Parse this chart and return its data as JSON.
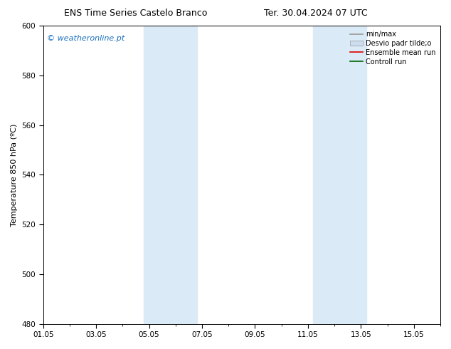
{
  "title_left": "ENS Time Series Castelo Branco",
  "title_right": "Ter. 30.04.2024 07 UTC",
  "ylabel": "Temperature 850 hPa (ºC)",
  "ylim": [
    480,
    600
  ],
  "yticks": [
    480,
    500,
    520,
    540,
    560,
    580,
    600
  ],
  "xtick_labels": [
    "01.05",
    "03.05",
    "05.05",
    "07.05",
    "09.05",
    "11.05",
    "13.05",
    "15.05"
  ],
  "xtick_positions": [
    0,
    2,
    4,
    6,
    8,
    10,
    12,
    14
  ],
  "xlim": [
    0,
    15
  ],
  "shaded_bands": [
    {
      "xstart": 3.8,
      "xend": 5.8
    },
    {
      "xstart": 10.2,
      "xend": 12.2
    }
  ],
  "shaded_color": "#daeaf7",
  "background_color": "#ffffff",
  "watermark_text": "© weatheronline.pt",
  "watermark_color": "#1a6fbd",
  "legend_entries": [
    {
      "label": "min/max",
      "color": "#999999",
      "lw": 1.2,
      "linestyle": "-",
      "type": "line"
    },
    {
      "label": "Desvio padr tilde;o",
      "color": "#ccddee",
      "lw": 5,
      "linestyle": "-",
      "type": "band"
    },
    {
      "label": "Ensemble mean run",
      "color": "#dd0000",
      "lw": 1.2,
      "linestyle": "-",
      "type": "line"
    },
    {
      "label": "Controll run",
      "color": "#006600",
      "lw": 1.2,
      "linestyle": "-",
      "type": "line"
    }
  ],
  "border_color": "#000000",
  "tick_color": "#000000",
  "title_fontsize": 9,
  "label_fontsize": 8,
  "tick_fontsize": 7.5,
  "watermark_fontsize": 8,
  "legend_fontsize": 7
}
